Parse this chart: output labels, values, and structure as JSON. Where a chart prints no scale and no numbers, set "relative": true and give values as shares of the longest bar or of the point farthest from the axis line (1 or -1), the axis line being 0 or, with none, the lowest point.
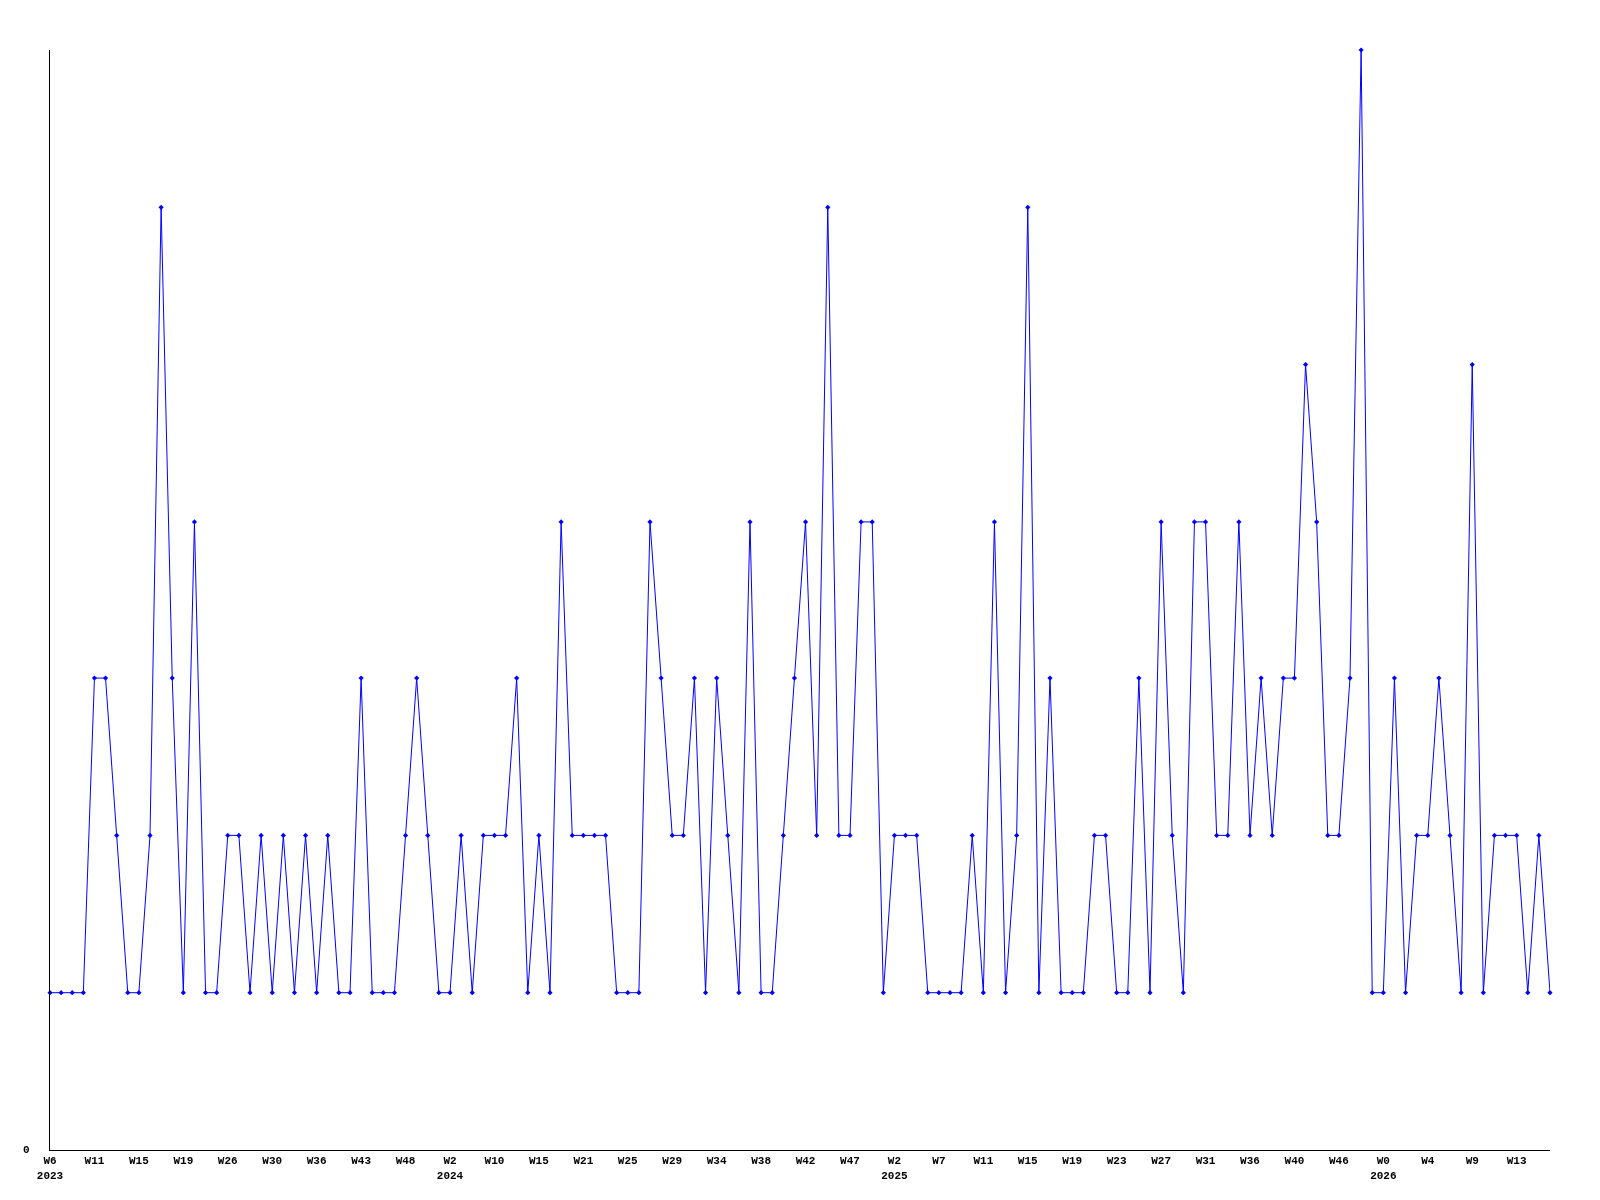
{
  "chart_data": {
    "type": "line",
    "relative": true,
    "marker": "diamond",
    "line_style": "solid",
    "annotations": [
      "0"
    ],
    "categories": [
      "W6\n2023",
      null,
      null,
      null,
      "W11",
      null,
      null,
      null,
      "W15",
      null,
      null,
      null,
      "W19",
      null,
      null,
      null,
      "W26",
      null,
      null,
      null,
      "W30",
      null,
      null,
      null,
      "W36",
      null,
      null,
      null,
      "W43",
      null,
      null,
      null,
      "W48",
      null,
      null,
      null,
      "W2\n2024",
      null,
      null,
      null,
      "W10",
      null,
      null,
      null,
      "W15",
      null,
      null,
      null,
      "W21",
      null,
      null,
      null,
      "W25",
      null,
      null,
      null,
      "W29",
      null,
      null,
      null,
      "W34",
      null,
      null,
      null,
      "W38",
      null,
      null,
      null,
      "W42",
      null,
      null,
      null,
      "W47",
      null,
      null,
      null,
      "W2\n2025",
      null,
      null,
      null,
      "W7",
      null,
      null,
      null,
      "W11",
      null,
      null,
      null,
      "W15",
      null,
      null,
      null,
      "W19",
      null,
      null,
      null,
      "W23",
      null,
      null,
      null,
      "W27",
      null,
      null,
      null,
      "W31",
      null,
      null,
      null,
      "W36",
      null,
      null,
      null,
      "W40",
      null,
      null,
      null,
      "W46",
      null,
      null,
      null,
      "W0\n2026",
      null,
      null,
      null,
      "W4",
      null,
      null,
      null,
      "W9",
      null,
      null,
      null,
      "W13",
      null,
      null,
      null
    ],
    "series": [
      {
        "color": "#0000ff",
        "values": [
          0.143,
          0.143,
          0.143,
          0.143,
          0.429,
          0.429,
          0.286,
          0.143,
          0.143,
          0.286,
          0.857,
          0.429,
          0.143,
          0.571,
          0.143,
          0.143,
          0.286,
          0.286,
          0.143,
          0.286,
          0.143,
          0.286,
          0.143,
          0.286,
          0.143,
          0.286,
          0.143,
          0.143,
          0.429,
          0.143,
          0.143,
          0.143,
          0.286,
          0.429,
          0.286,
          0.143,
          0.143,
          0.286,
          0.143,
          0.286,
          0.286,
          0.286,
          0.429,
          0.143,
          0.286,
          0.143,
          0.571,
          0.286,
          0.286,
          0.286,
          0.286,
          0.143,
          0.143,
          0.143,
          0.571,
          0.429,
          0.286,
          0.286,
          0.429,
          0.143,
          0.429,
          0.286,
          0.143,
          0.571,
          0.143,
          0.143,
          0.286,
          0.429,
          0.571,
          0.286,
          0.857,
          0.286,
          0.286,
          0.571,
          0.571,
          0.143,
          0.286,
          0.286,
          0.286,
          0.143,
          0.143,
          0.143,
          0.143,
          0.286,
          0.143,
          0.571,
          0.143,
          0.286,
          0.857,
          0.143,
          0.429,
          0.143,
          0.143,
          0.143,
          0.286,
          0.286,
          0.143,
          0.143,
          0.429,
          0.143,
          0.571,
          0.286,
          0.143,
          0.571,
          0.571,
          0.286,
          0.286,
          0.571,
          0.286,
          0.429,
          0.286,
          0.429,
          0.429,
          0.714,
          0.571,
          0.286,
          0.286,
          0.429,
          1,
          0.143,
          0.143,
          0.429,
          0.143,
          0.286,
          0.286,
          0.429,
          0.286,
          0.143,
          0.714,
          0.143,
          0.286,
          0.286,
          0.286,
          0.143,
          0.286,
          0.143
        ]
      }
    ]
  }
}
